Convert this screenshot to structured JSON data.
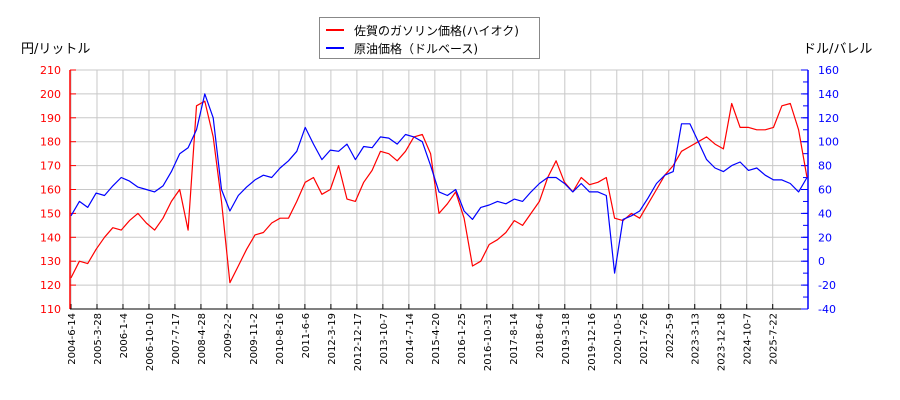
{
  "legend": {
    "items": [
      {
        "label": "佐賀のガソリン価格(ハイオク)",
        "color": "#ff0000"
      },
      {
        "label": "原油価格（ドルベース)",
        "color": "#0000ff"
      }
    ]
  },
  "axes": {
    "left_title": "円/リットル",
    "right_title": "ドル/バレル"
  },
  "chart_data": {
    "type": "line",
    "title": "",
    "xlabel": "",
    "ylabel_left": "円/リットル",
    "ylabel_right": "ドル/バレル",
    "ylim_left": [
      110,
      210
    ],
    "ylim_right": [
      -40,
      160
    ],
    "yticks_left": [
      110,
      120,
      130,
      140,
      150,
      160,
      170,
      180,
      190,
      200,
      210
    ],
    "yticks_right": [
      -40,
      -20,
      0,
      20,
      40,
      60,
      80,
      100,
      120,
      140,
      160
    ],
    "grid": true,
    "legend_position": "top-center",
    "x_tick_labels": [
      "2004-6-14",
      "2005-3-28",
      "2006-1-4",
      "2006-10-10",
      "2007-7-17",
      "2008-4-28",
      "2009-2-2",
      "2009-11-2",
      "2010-8-16",
      "2011-6-6",
      "2012-3-19",
      "2012-12-17",
      "2013-10-7",
      "2014-7-14",
      "2015-4-20",
      "2016-1-25",
      "2016-10-31",
      "2017-8-14",
      "2018-6-4",
      "2019-3-18",
      "2019-12-16",
      "2020-10-5",
      "2021-7-26",
      "2022-5-9",
      "2023-3-13",
      "2023-12-18",
      "2024-10-7",
      "2025-7-22"
    ],
    "x": [
      "2004-6",
      "2004-9",
      "2005-1",
      "2005-4",
      "2005-8",
      "2005-11",
      "2006-3",
      "2006-7",
      "2006-10",
      "2007-1",
      "2007-4",
      "2007-8",
      "2007-11",
      "2008-2",
      "2008-4",
      "2008-6",
      "2008-8",
      "2008-10",
      "2008-12",
      "2009-3",
      "2009-6",
      "2009-9",
      "2009-12",
      "2010-3",
      "2010-6",
      "2010-9",
      "2010-12",
      "2011-3",
      "2011-5",
      "2011-8",
      "2011-11",
      "2012-2",
      "2012-4",
      "2012-7",
      "2012-10",
      "2013-1",
      "2013-4",
      "2013-7",
      "2013-10",
      "2014-1",
      "2014-4",
      "2014-7",
      "2014-10",
      "2014-12",
      "2015-3",
      "2015-6",
      "2015-9",
      "2015-12",
      "2016-2",
      "2016-5",
      "2016-8",
      "2016-11",
      "2017-2",
      "2017-5",
      "2017-8",
      "2017-11",
      "2018-2",
      "2018-5",
      "2018-8",
      "2018-11",
      "2019-2",
      "2019-5",
      "2019-8",
      "2019-11",
      "2020-2",
      "2020-4",
      "2020-6",
      "2020-9",
      "2020-12",
      "2021-3",
      "2021-6",
      "2021-9",
      "2021-12",
      "2022-3",
      "2022-6",
      "2022-9",
      "2022-12",
      "2023-3",
      "2023-6",
      "2023-9",
      "2023-12",
      "2024-3",
      "2024-6",
      "2024-9",
      "2024-12",
      "2025-3",
      "2025-6",
      "2025-9",
      "2025-11"
    ],
    "series": [
      {
        "name": "佐賀のガソリン価格(ハイオク)",
        "axis": "left",
        "color": "#ff0000",
        "values": [
          123,
          130,
          129,
          135,
          140,
          144,
          143,
          147,
          150,
          146,
          143,
          148,
          155,
          160,
          143,
          195,
          197,
          182,
          155,
          121,
          128,
          135,
          141,
          142,
          146,
          148,
          148,
          155,
          163,
          165,
          158,
          160,
          170,
          156,
          155,
          163,
          168,
          176,
          175,
          172,
          176,
          182,
          183,
          175,
          150,
          154,
          159,
          148,
          128,
          130,
          137,
          139,
          142,
          147,
          145,
          150,
          155,
          165,
          172,
          163,
          159,
          165,
          162,
          163,
          165,
          148,
          147,
          150,
          148,
          154,
          160,
          166,
          170,
          176,
          178,
          180,
          182,
          179,
          177,
          196,
          186,
          186,
          185,
          185,
          186,
          195,
          196,
          185,
          165
        ]
      },
      {
        "name": "原油価格（ドルベース)",
        "axis": "left-scaled-right",
        "color": "#0000ff",
        "values": [
          38,
          50,
          45,
          57,
          55,
          63,
          70,
          67,
          62,
          60,
          58,
          63,
          75,
          90,
          95,
          110,
          140,
          120,
          60,
          42,
          55,
          62,
          68,
          72,
          70,
          78,
          84,
          92,
          112,
          98,
          85,
          93,
          92,
          98,
          85,
          96,
          95,
          104,
          103,
          98,
          106,
          104,
          100,
          80,
          58,
          55,
          60,
          42,
          35,
          45,
          47,
          50,
          48,
          52,
          50,
          58,
          65,
          70,
          70,
          65,
          58,
          65,
          58,
          58,
          55,
          -10,
          35,
          38,
          42,
          53,
          65,
          72,
          75,
          115,
          115,
          100,
          85,
          78,
          75,
          80,
          83,
          76,
          78,
          72,
          68,
          68,
          65,
          58,
          70
        ]
      }
    ]
  }
}
